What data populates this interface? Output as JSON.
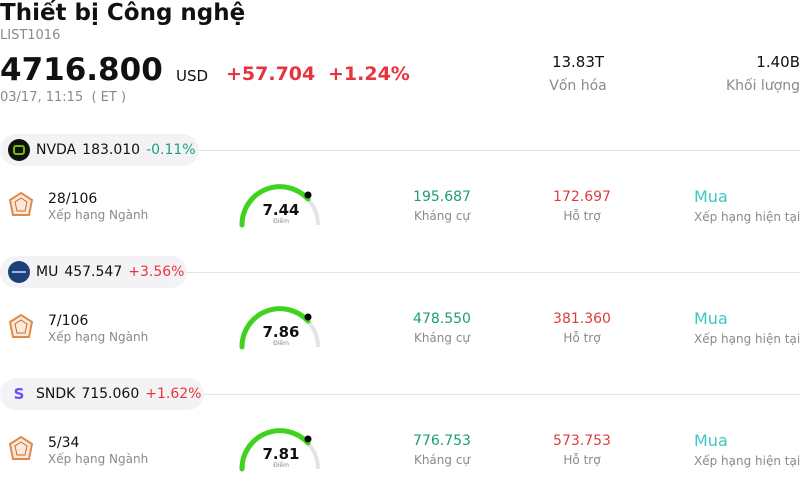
{
  "header": {
    "title": "Thiết bị Công nghệ",
    "code": "LIST1016",
    "price": "4716.800",
    "currency": "USD",
    "change": "+57.704",
    "change_pct": "+1.24%",
    "time": "03/17, 11:15  ( ET )",
    "stats": [
      {
        "value": "13.83T",
        "label": "Vốn hóa"
      },
      {
        "value": "1.40B",
        "label": "Khối lượng"
      }
    ]
  },
  "stocks": [
    {
      "ticker": "NVDA",
      "price": "183.010",
      "change": "-0.11%",
      "rank": "28/106",
      "rank_label": "Xếp hạng Ngành",
      "score": "7.44",
      "score_label": "Điểm",
      "resistance": "195.687",
      "resistance_label": "Kháng cự",
      "support": "172.697",
      "support_label": "Hỗ trợ",
      "rating": "Mua",
      "rating_label": "Xếp hạng hiện tại"
    },
    {
      "ticker": "MU",
      "price": "457.547",
      "change": "+3.56%",
      "rank": "7/106",
      "rank_label": "Xếp hạng Ngành",
      "score": "7.86",
      "score_label": "Điểm",
      "resistance": "478.550",
      "resistance_label": "Kháng cự",
      "support": "381.360",
      "support_label": "Hỗ trợ",
      "rating": "Mua",
      "rating_label": "Xếp hạng hiện tại"
    },
    {
      "ticker": "SNDK",
      "logo": "S",
      "price": "715.060",
      "change": "+1.62%",
      "rank": "5/34",
      "rank_label": "Xếp hạng Ngành",
      "score": "7.81",
      "score_label": "Điểm",
      "resistance": "776.753",
      "resistance_label": "Kháng cự",
      "support": "573.753",
      "support_label": "Hỗ trợ",
      "rating": "Mua",
      "rating_label": "Xếp hạng hiện tại"
    }
  ]
}
